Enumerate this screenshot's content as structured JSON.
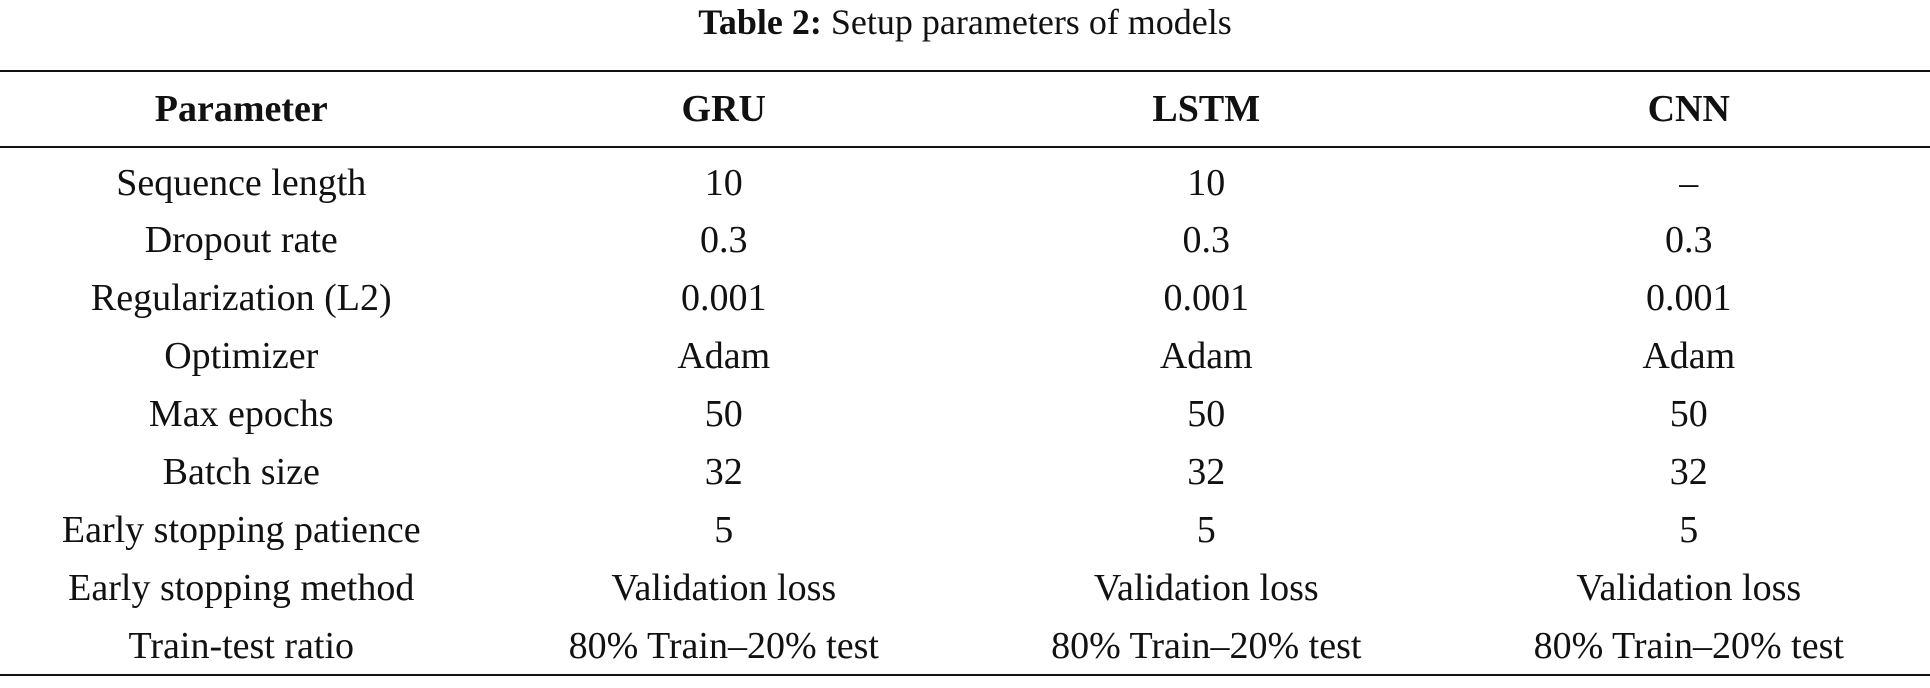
{
  "caption": {
    "label": "Table 2:",
    "text": "Setup parameters of models"
  },
  "table": {
    "header": [
      "Parameter",
      "GRU",
      "LSTM",
      "CNN"
    ],
    "rows": [
      [
        "Sequence length",
        "10",
        "10",
        "–"
      ],
      [
        "Dropout rate",
        "0.3",
        "0.3",
        "0.3"
      ],
      [
        "Regularization (L2)",
        "0.001",
        "0.001",
        "0.001"
      ],
      [
        "Optimizer",
        "Adam",
        "Adam",
        "Adam"
      ],
      [
        "Max epochs",
        "50",
        "50",
        "50"
      ],
      [
        "Batch size",
        "32",
        "32",
        "32"
      ],
      [
        "Early stopping patience",
        "5",
        "5",
        "5"
      ],
      [
        "Early stopping method",
        "Validation loss",
        "Validation loss",
        "Validation loss"
      ],
      [
        "Train-test ratio",
        "80% Train–20% test",
        "80% Train–20% test",
        "80% Train–20% test"
      ]
    ]
  }
}
